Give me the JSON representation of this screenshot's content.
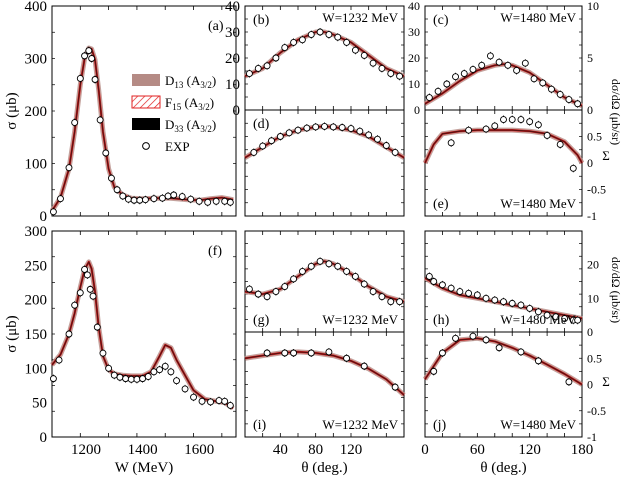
{
  "figure": {
    "legend": {
      "d13": "D",
      "d13_sub": "13",
      "d13_tail": " (A",
      "d13_sub2": "3/2",
      "d13_end": ")",
      "f15": "F",
      "f15_sub": "15",
      "f15_tail": " (A",
      "f15_sub2": "3/2",
      "f15_end": ")",
      "d33": "D",
      "d33_sub": "33",
      "d33_tail": " (A",
      "d33_sub2": "3/2",
      "d33_end": ")",
      "exp": "EXP"
    },
    "colors": {
      "d13": "#b58b85",
      "f15": "#e02020",
      "d33": "#000000",
      "exp_marker": "#000000",
      "curve": "#5a1212"
    },
    "right_axis_labels": {
      "dsdo": "dσ/dΩ (μb/sr)",
      "sigma": "Σ"
    }
  },
  "chart_data": [
    {
      "type": "line",
      "panel": "a",
      "label": "(a)",
      "xlabel": "",
      "ylabel": "σ (μb)",
      "xlim": [
        1080,
        1730
      ],
      "ylim": [
        0,
        400
      ],
      "xticks": [],
      "yticks": [
        0,
        100,
        200,
        300,
        400
      ],
      "series": [
        {
          "name": "Model",
          "x": [
            1080,
            1110,
            1140,
            1160,
            1180,
            1195,
            1210,
            1220,
            1232,
            1245,
            1260,
            1280,
            1300,
            1330,
            1360,
            1400,
            1440,
            1480,
            1500,
            1520,
            1560,
            1600,
            1640,
            1680,
            1720
          ],
          "y": [
            10,
            35,
            90,
            160,
            250,
            300,
            320,
            318,
            298,
            240,
            160,
            90,
            55,
            40,
            34,
            33,
            34,
            34,
            34,
            33,
            31,
            30,
            33,
            35,
            31
          ]
        }
      ],
      "points": {
        "x": [
          1085,
          1110,
          1140,
          1160,
          1180,
          1195,
          1210,
          1220,
          1232,
          1250,
          1270,
          1290,
          1310,
          1330,
          1350,
          1370,
          1390,
          1410,
          1440,
          1470,
          1490,
          1510,
          1540,
          1570,
          1600,
          1630,
          1660,
          1690,
          1710
        ],
        "y": [
          8,
          33,
          92,
          178,
          262,
          305,
          315,
          300,
          260,
          183,
          120,
          72,
          50,
          38,
          32,
          30,
          30,
          31,
          33,
          34,
          38,
          40,
          37,
          32,
          28,
          26,
          28,
          28,
          26
        ]
      }
    },
    {
      "type": "line",
      "panel": "b",
      "label": "(b)",
      "title": "W=1232 MeV",
      "xlim": [
        0,
        180
      ],
      "ylim": [
        0,
        40
      ],
      "yticks": [
        0,
        10,
        20,
        30,
        40
      ],
      "series": [
        {
          "name": "Model",
          "x": [
            0,
            20,
            40,
            60,
            80,
            90,
            100,
            120,
            140,
            160,
            180
          ],
          "y": [
            13,
            16,
            22,
            27,
            30,
            30,
            29,
            26,
            21,
            16,
            13
          ]
        }
      ],
      "points": {
        "x": [
          5,
          15,
          25,
          35,
          45,
          55,
          65,
          75,
          85,
          95,
          105,
          115,
          125,
          135,
          145,
          155,
          165,
          175
        ],
        "y": [
          14,
          16,
          17,
          20,
          24,
          26,
          27,
          29,
          30,
          29,
          28,
          26,
          23,
          21,
          18,
          16,
          14,
          13
        ]
      }
    },
    {
      "type": "line",
      "panel": "c",
      "label": "(c)",
      "title": "W=1480 MeV",
      "xlim": [
        0,
        180
      ],
      "ylim": [
        0,
        10
      ],
      "yticks": [
        0,
        5,
        10
      ],
      "series": [
        {
          "name": "Model",
          "x": [
            0,
            20,
            40,
            60,
            80,
            90,
            100,
            120,
            140,
            160,
            180
          ],
          "y": [
            0.6,
            1.6,
            2.8,
            3.8,
            4.3,
            4.4,
            4.3,
            3.6,
            2.4,
            1.2,
            0.4
          ]
        }
      ],
      "points": {
        "x": [
          5,
          15,
          25,
          35,
          45,
          55,
          65,
          75,
          85,
          95,
          105,
          115,
          125,
          135,
          145,
          155,
          165,
          175
        ],
        "y": [
          1.2,
          1.8,
          2.5,
          3.2,
          3.5,
          3.9,
          4.3,
          5.2,
          4.6,
          4.3,
          3.8,
          4.5,
          3.0,
          2.6,
          2.0,
          1.5,
          1.0,
          0.6
        ]
      }
    },
    {
      "type": "line",
      "panel": "d",
      "label": "(d)",
      "title": "",
      "xlim": [
        0,
        180
      ],
      "ylim": [
        -1,
        1
      ],
      "yticks": [],
      "series": [
        {
          "name": "Model",
          "x": [
            0,
            20,
            40,
            60,
            80,
            90,
            100,
            120,
            140,
            160,
            180
          ],
          "y": [
            0.1,
            0.3,
            0.5,
            0.62,
            0.68,
            0.69,
            0.68,
            0.62,
            0.5,
            0.3,
            0.1
          ]
        }
      ],
      "points": {
        "x": [
          10,
          20,
          30,
          40,
          50,
          60,
          70,
          80,
          90,
          100,
          110,
          120,
          130,
          140,
          150,
          160,
          170
        ],
        "y": [
          0.2,
          0.32,
          0.42,
          0.5,
          0.57,
          0.62,
          0.66,
          0.68,
          0.69,
          0.68,
          0.67,
          0.65,
          0.6,
          0.53,
          0.45,
          0.33,
          0.2
        ]
      }
    },
    {
      "type": "line",
      "panel": "e",
      "label": "(e)",
      "title": "W=1480 MeV",
      "xlim": [
        0,
        180
      ],
      "ylim": [
        -1,
        1
      ],
      "yticks": [
        -1,
        -0.5,
        0,
        0.5
      ],
      "series": [
        {
          "name": "Model",
          "x": [
            0,
            10,
            20,
            40,
            60,
            80,
            100,
            120,
            140,
            160,
            175,
            180
          ],
          "y": [
            0,
            0.35,
            0.55,
            0.6,
            0.62,
            0.62,
            0.62,
            0.6,
            0.55,
            0.4,
            0.15,
            0
          ]
        }
      ],
      "points": {
        "x": [
          30,
          50,
          70,
          80,
          90,
          100,
          110,
          120,
          130,
          140,
          155,
          170
        ],
        "y": [
          0.38,
          0.62,
          0.64,
          0.7,
          0.82,
          0.82,
          0.82,
          0.78,
          0.72,
          0.52,
          0.35,
          -0.1
        ]
      }
    },
    {
      "type": "line",
      "panel": "f",
      "label": "(f)",
      "xlabel": "W (MeV)",
      "ylabel": "σ (μb)",
      "xlim": [
        1080,
        1730
      ],
      "ylim": [
        0,
        300
      ],
      "xticks": [
        1200,
        1400,
        1600
      ],
      "yticks": [
        0,
        50,
        100,
        150,
        200,
        250,
        300
      ],
      "series": [
        {
          "name": "Model",
          "x": [
            1080,
            1110,
            1140,
            1160,
            1180,
            1195,
            1210,
            1220,
            1232,
            1245,
            1260,
            1280,
            1300,
            1330,
            1360,
            1400,
            1430,
            1460,
            1480,
            1500,
            1520,
            1550,
            1580,
            1620,
            1660,
            1690,
            1720
          ],
          "y": [
            105,
            120,
            150,
            180,
            218,
            244,
            255,
            245,
            212,
            160,
            118,
            98,
            92,
            90,
            89,
            89,
            95,
            118,
            134,
            130,
            112,
            90,
            68,
            55,
            52,
            50,
            42
          ]
        }
      ],
      "points": {
        "x": [
          1085,
          1105,
          1140,
          1160,
          1180,
          1195,
          1205,
          1215,
          1225,
          1240,
          1260,
          1280,
          1300,
          1320,
          1340,
          1360,
          1380,
          1400,
          1420,
          1440,
          1460,
          1480,
          1500,
          1520,
          1550,
          1580,
          1610,
          1640,
          1670,
          1690,
          1710
        ],
        "y": [
          85,
          112,
          150,
          192,
          210,
          244,
          236,
          215,
          205,
          160,
          122,
          100,
          90,
          87,
          85,
          84,
          84,
          85,
          88,
          95,
          98,
          103,
          95,
          82,
          70,
          58,
          52,
          51,
          53,
          52,
          46
        ]
      }
    },
    {
      "type": "line",
      "panel": "g",
      "label": "(g)",
      "title": "W=1232 MeV",
      "xlim": [
        0,
        180
      ],
      "ylim": [
        0,
        40
      ],
      "yticks": [],
      "series": [
        {
          "name": "Model",
          "x": [
            0,
            20,
            40,
            60,
            80,
            90,
            100,
            120,
            140,
            160,
            180
          ],
          "y": [
            16,
            15,
            17,
            22,
            27,
            28,
            27,
            23,
            18,
            14,
            12
          ]
        }
      ],
      "points": {
        "x": [
          5,
          15,
          25,
          35,
          45,
          55,
          65,
          75,
          85,
          95,
          105,
          115,
          125,
          135,
          145,
          155,
          165,
          175
        ],
        "y": [
          17,
          15,
          14,
          16,
          18,
          21,
          24,
          26,
          28,
          27,
          26,
          24,
          22,
          19,
          16,
          14,
          12,
          12
        ]
      }
    },
    {
      "type": "line",
      "panel": "h",
      "label": "(h)",
      "title": "W=1480 MeV",
      "xlim": [
        0,
        180
      ],
      "ylim": [
        0,
        30
      ],
      "yticks": [
        0,
        10,
        20
      ],
      "series": [
        {
          "name": "Model",
          "x": [
            0,
            20,
            40,
            60,
            80,
            100,
            120,
            140,
            160,
            180
          ],
          "y": [
            16,
            13,
            11,
            10,
            9,
            8,
            7,
            6,
            5,
            4
          ]
        }
      ],
      "points": {
        "x": [
          5,
          10,
          20,
          30,
          40,
          50,
          60,
          70,
          80,
          90,
          100,
          110,
          120,
          130,
          140,
          150,
          160,
          170,
          175
        ],
        "y": [
          16.5,
          15,
          14,
          13,
          12,
          11.5,
          11,
          10,
          9.5,
          9,
          8.5,
          8,
          7,
          6,
          5,
          4.5,
          4,
          3.5,
          3.5
        ]
      }
    },
    {
      "type": "line",
      "panel": "i",
      "label": "(i)",
      "title": "W=1232 MeV",
      "xlim": [
        0,
        180
      ],
      "ylim": [
        -1,
        1
      ],
      "yticks": [],
      "series": [
        {
          "name": "Model",
          "x": [
            0,
            20,
            40,
            60,
            80,
            100,
            120,
            140,
            160,
            180
          ],
          "y": [
            0.5,
            0.55,
            0.6,
            0.62,
            0.6,
            0.55,
            0.45,
            0.3,
            0.1,
            -0.2
          ]
        }
      ],
      "points": {
        "x": [
          25,
          45,
          55,
          75,
          95,
          115,
          135,
          170
        ],
        "y": [
          0.6,
          0.6,
          0.6,
          0.6,
          0.62,
          0.5,
          0.35,
          -0.05
        ]
      }
    },
    {
      "type": "line",
      "panel": "j",
      "label": "(j)",
      "title": "W=1480 MeV",
      "xlabel": "θ (deg.)",
      "xlim": [
        0,
        180
      ],
      "ylim": [
        -1,
        1
      ],
      "xticks": [
        0,
        60,
        120,
        180
      ],
      "yticks": [
        -1,
        -0.5,
        0,
        0.5
      ],
      "series": [
        {
          "name": "Model",
          "x": [
            0,
            20,
            40,
            60,
            80,
            100,
            120,
            140,
            160,
            180
          ],
          "y": [
            0.1,
            0.6,
            0.85,
            0.88,
            0.82,
            0.7,
            0.55,
            0.38,
            0.2,
            0
          ]
        }
      ],
      "points": {
        "x": [
          10,
          20,
          35,
          55,
          70,
          85,
          110,
          130,
          165
        ],
        "y": [
          0.25,
          0.6,
          0.88,
          0.92,
          0.85,
          0.7,
          0.62,
          0.45,
          0.05
        ]
      }
    }
  ],
  "axes_text": {
    "theta_label": "θ (deg.)",
    "mid_xticks": [
      "40",
      "80",
      "120"
    ],
    "right_xticks": [
      "0",
      "60",
      "120",
      "180"
    ],
    "f_xticks": [
      "1200",
      "1400",
      "1600"
    ]
  }
}
